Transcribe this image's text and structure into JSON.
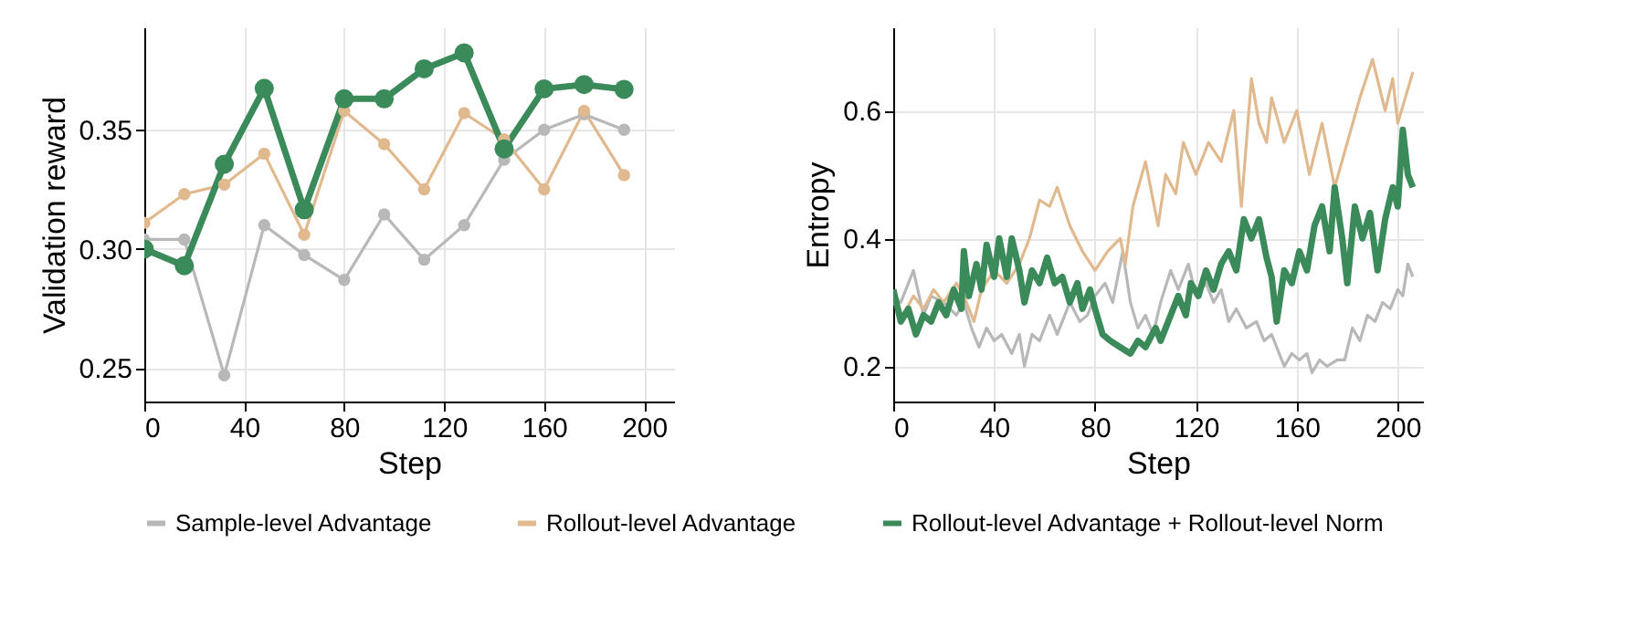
{
  "chart_data": [
    {
      "type": "line",
      "xlabel": "Step",
      "ylabel": "Validation reward",
      "x": [
        0,
        16,
        32,
        48,
        64,
        80,
        96,
        112,
        128,
        144,
        160,
        176,
        192
      ],
      "xlim": [
        0,
        212
      ],
      "xticks": [
        0,
        40,
        80,
        120,
        160,
        200
      ],
      "ylim": [
        0.236,
        0.393
      ],
      "yticks": [
        0.25,
        {
          "value": 0.3,
          "label": "0.30"
        },
        0.35
      ],
      "grid": true,
      "marker": "circle",
      "line_style": "solid",
      "legend": "bottom",
      "series": [
        {
          "name": "Sample-level Advantage",
          "color": "#b8b8b8",
          "values": [
            0.304,
            0.304,
            0.247,
            0.31,
            0.2975,
            0.287,
            0.3145,
            0.2955,
            0.31,
            0.3375,
            0.35,
            0.3565,
            0.35
          ]
        },
        {
          "name": "Rollout-level Advantage",
          "color": "#e0b98e",
          "values": [
            0.311,
            0.323,
            0.327,
            0.34,
            0.306,
            0.358,
            0.344,
            0.325,
            0.357,
            0.346,
            0.325,
            0.358,
            0.331
          ]
        },
        {
          "name": "Rollout-level Advantage + Rollout-level Norm",
          "color": "#3a8a5a",
          "values": [
            0.3,
            0.293,
            0.3356,
            0.3674,
            0.3165,
            0.363,
            0.363,
            0.3756,
            0.3823,
            0.342,
            0.3672,
            0.369,
            0.367
          ]
        }
      ]
    },
    {
      "type": "line",
      "xlabel": "Step",
      "ylabel": "Entropy",
      "xlim": [
        0,
        210
      ],
      "xticks": [
        0,
        40,
        80,
        120,
        160,
        200
      ],
      "ylim": [
        0.145,
        0.73
      ],
      "yticks": [
        0.2,
        0.4,
        0.6
      ],
      "grid": true,
      "line_style": "solid",
      "legend": "bottom",
      "series": [
        {
          "name": "Sample-level Advantage",
          "color": "#b8b8b8",
          "x": [
            0,
            3,
            8,
            12,
            15,
            20,
            25,
            28,
            31,
            34,
            37,
            40,
            43,
            47,
            50,
            52,
            55,
            58,
            62,
            65,
            70,
            74,
            77,
            80,
            84,
            87,
            91,
            94,
            97,
            100,
            103,
            106,
            110,
            113,
            117,
            120,
            124,
            127,
            130,
            133,
            136,
            140,
            144,
            147,
            150,
            153,
            155,
            158,
            161,
            164,
            166,
            169,
            172,
            176,
            179,
            182,
            185,
            188,
            191,
            194,
            197,
            200,
            202,
            204,
            206
          ],
          "values": [
            0.31,
            0.3,
            0.35,
            0.28,
            0.31,
            0.3,
            0.28,
            0.3,
            0.26,
            0.23,
            0.26,
            0.24,
            0.25,
            0.22,
            0.25,
            0.2,
            0.25,
            0.24,
            0.28,
            0.25,
            0.3,
            0.27,
            0.28,
            0.31,
            0.33,
            0.3,
            0.38,
            0.3,
            0.26,
            0.28,
            0.25,
            0.3,
            0.35,
            0.32,
            0.36,
            0.31,
            0.33,
            0.3,
            0.32,
            0.27,
            0.29,
            0.26,
            0.27,
            0.24,
            0.25,
            0.22,
            0.2,
            0.22,
            0.21,
            0.22,
            0.19,
            0.21,
            0.2,
            0.21,
            0.21,
            0.26,
            0.24,
            0.28,
            0.27,
            0.3,
            0.29,
            0.32,
            0.31,
            0.36,
            0.34
          ]
        },
        {
          "name": "Rollout-level Advantage",
          "color": "#e0b98e",
          "x": [
            0,
            4,
            8,
            12,
            16,
            20,
            25,
            28,
            32,
            35,
            40,
            45,
            50,
            54,
            58,
            62,
            65,
            70,
            75,
            80,
            85,
            90,
            92,
            95,
            100,
            105,
            108,
            112,
            115,
            120,
            125,
            130,
            135,
            138,
            142,
            145,
            148,
            150,
            155,
            160,
            165,
            170,
            175,
            180,
            185,
            190,
            195,
            198,
            200,
            203,
            206
          ],
          "values": [
            0.3,
            0.28,
            0.31,
            0.29,
            0.32,
            0.3,
            0.33,
            0.31,
            0.27,
            0.32,
            0.35,
            0.33,
            0.36,
            0.4,
            0.46,
            0.45,
            0.48,
            0.42,
            0.38,
            0.35,
            0.38,
            0.4,
            0.36,
            0.45,
            0.52,
            0.42,
            0.5,
            0.47,
            0.55,
            0.5,
            0.55,
            0.52,
            0.6,
            0.45,
            0.65,
            0.58,
            0.55,
            0.62,
            0.55,
            0.6,
            0.5,
            0.58,
            0.48,
            0.55,
            0.62,
            0.68,
            0.6,
            0.65,
            0.58,
            0.62,
            0.66
          ]
        },
        {
          "name": "Rollout-level Advantage + Rollout-level Norm",
          "color": "#3a8a5a",
          "x": [
            0,
            3,
            6,
            9,
            12,
            15,
            18,
            21,
            24,
            27,
            28,
            30,
            33,
            35,
            37,
            40,
            42,
            45,
            47,
            50,
            52,
            55,
            58,
            61,
            64,
            67,
            70,
            73,
            75,
            78,
            80,
            83,
            86,
            90,
            94,
            97,
            100,
            104,
            106,
            110,
            113,
            116,
            118,
            121,
            124,
            127,
            130,
            133,
            136,
            139,
            142,
            145,
            148,
            150,
            152,
            155,
            158,
            161,
            164,
            167,
            170,
            173,
            175,
            178,
            180,
            183,
            186,
            189,
            192,
            195,
            198,
            200,
            202,
            204,
            206
          ],
          "values": [
            0.32,
            0.27,
            0.29,
            0.25,
            0.28,
            0.27,
            0.3,
            0.28,
            0.32,
            0.29,
            0.38,
            0.31,
            0.36,
            0.32,
            0.39,
            0.34,
            0.4,
            0.34,
            0.4,
            0.35,
            0.3,
            0.35,
            0.33,
            0.37,
            0.33,
            0.34,
            0.3,
            0.33,
            0.29,
            0.32,
            0.29,
            0.25,
            0.24,
            0.23,
            0.22,
            0.24,
            0.23,
            0.26,
            0.24,
            0.28,
            0.31,
            0.28,
            0.33,
            0.31,
            0.35,
            0.32,
            0.36,
            0.38,
            0.35,
            0.43,
            0.4,
            0.43,
            0.37,
            0.34,
            0.27,
            0.35,
            0.33,
            0.38,
            0.35,
            0.42,
            0.45,
            0.38,
            0.48,
            0.4,
            0.33,
            0.45,
            0.4,
            0.44,
            0.35,
            0.43,
            0.48,
            0.45,
            0.57,
            0.5,
            0.48
          ]
        }
      ]
    }
  ]
}
